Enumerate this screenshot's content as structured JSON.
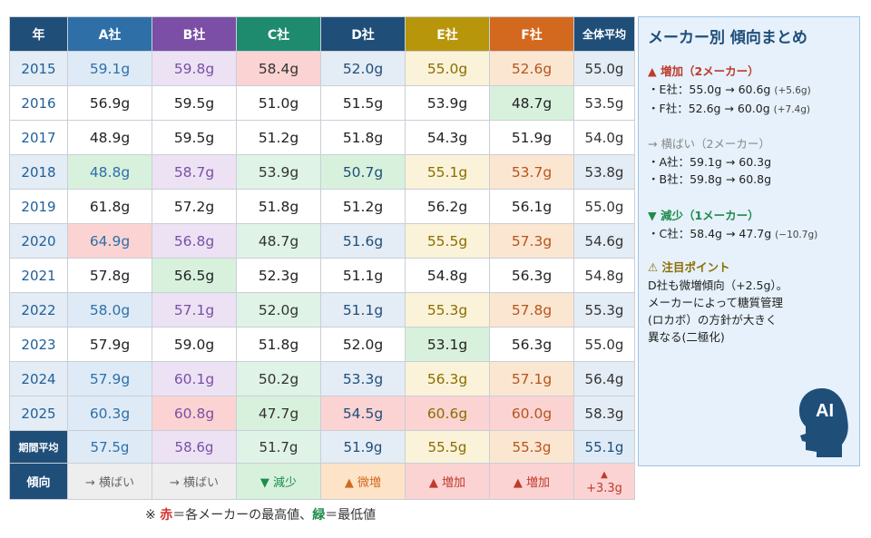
{
  "table": {
    "headers": [
      "年",
      "A社",
      "B社",
      "C社",
      "D社",
      "E社",
      "F社",
      "全体平均"
    ],
    "header_colors": [
      "#1f4e79",
      "#2f6fa8",
      "#7b4fa6",
      "#1e8a6e",
      "#1f4e79",
      "#b8960c",
      "#d2691e",
      "#1f4e79"
    ],
    "col_tints": [
      "#f7f9fb",
      "#deebf7",
      "#ece2f4",
      "#dff3e6",
      "#e4ecf5",
      "#fbf3d9",
      "#fbe6d2",
      "#e4ecf5"
    ],
    "col_text_colors": [
      "#1f5f99",
      "#2f6fa8",
      "#7b4fa6",
      "#333333",
      "#1f4e79",
      "#8a6d00",
      "#b5551a",
      "#333333"
    ],
    "rows": [
      {
        "year": "2015",
        "cells": [
          "59.1g",
          "59.8g",
          "58.4g",
          "52.0g",
          "55.0g",
          "52.6g"
        ],
        "avg": "55.0g",
        "tinted": true,
        "marks": {
          "2": "hi"
        }
      },
      {
        "year": "2016",
        "cells": [
          "56.9g",
          "59.5g",
          "51.0g",
          "51.5g",
          "53.9g",
          "48.7g"
        ],
        "avg": "53.5g",
        "tinted": false,
        "marks": {
          "5": "lo"
        }
      },
      {
        "year": "2017",
        "cells": [
          "48.9g",
          "59.5g",
          "51.2g",
          "51.8g",
          "54.3g",
          "51.9g"
        ],
        "avg": "54.0g",
        "tinted": false,
        "marks": {}
      },
      {
        "year": "2018",
        "cells": [
          "48.8g",
          "58.7g",
          "53.9g",
          "50.7g",
          "55.1g",
          "53.7g"
        ],
        "avg": "53.8g",
        "tinted": true,
        "marks": {
          "0": "lo",
          "3": "lo"
        }
      },
      {
        "year": "2019",
        "cells": [
          "61.8g",
          "57.2g",
          "51.8g",
          "51.2g",
          "56.2g",
          "56.1g"
        ],
        "avg": "55.0g",
        "tinted": false,
        "marks": {}
      },
      {
        "year": "2020",
        "cells": [
          "64.9g",
          "56.8g",
          "48.7g",
          "51.6g",
          "55.5g",
          "57.3g"
        ],
        "avg": "54.6g",
        "tinted": true,
        "marks": {
          "0": "hi"
        }
      },
      {
        "year": "2021",
        "cells": [
          "57.8g",
          "56.5g",
          "52.3g",
          "51.1g",
          "54.8g",
          "56.3g"
        ],
        "avg": "54.8g",
        "tinted": false,
        "marks": {
          "1": "lo"
        }
      },
      {
        "year": "2022",
        "cells": [
          "58.0g",
          "57.1g",
          "52.0g",
          "51.1g",
          "55.3g",
          "57.8g"
        ],
        "avg": "55.3g",
        "tinted": true,
        "marks": {}
      },
      {
        "year": "2023",
        "cells": [
          "57.9g",
          "59.0g",
          "51.8g",
          "52.0g",
          "53.1g",
          "56.3g"
        ],
        "avg": "55.0g",
        "tinted": false,
        "marks": {
          "4": "lo"
        }
      },
      {
        "year": "2024",
        "cells": [
          "57.9g",
          "60.1g",
          "50.2g",
          "53.3g",
          "56.3g",
          "57.1g"
        ],
        "avg": "56.4g",
        "tinted": true,
        "marks": {}
      },
      {
        "year": "2025",
        "cells": [
          "60.3g",
          "60.8g",
          "47.7g",
          "54.5g",
          "60.6g",
          "60.0g"
        ],
        "avg": "58.3g",
        "tinted": true,
        "marks": {
          "1": "hi",
          "2": "lo",
          "3": "hi",
          "4": "hi",
          "5": "hi"
        }
      }
    ],
    "period_avg": {
      "label": "期間平均",
      "cells": [
        "57.5g",
        "58.6g",
        "51.7g",
        "51.9g",
        "55.5g",
        "55.3g"
      ],
      "avg": "55.1g"
    },
    "trend": {
      "label": "傾向",
      "cells": [
        {
          "text": "→ 横ばい",
          "color": "#666666",
          "bg": "#eeeeee"
        },
        {
          "text": "→ 横ばい",
          "color": "#666666",
          "bg": "#eeeeee"
        },
        {
          "text": "▼ 減少",
          "color": "#1e8c4a",
          "bg": "#d8f1dd"
        },
        {
          "text": "▲ 微増",
          "color": "#d2691e",
          "bg": "#fde3c8"
        },
        {
          "text": "▲ 増加",
          "color": "#c0392b",
          "bg": "#fbd3d3"
        },
        {
          "text": "▲ 増加",
          "color": "#c0392b",
          "bg": "#fbd3d3"
        }
      ],
      "avg_arrow": "▲",
      "avg": "+3.3g"
    }
  },
  "panel": {
    "title": "メーカー別 傾向まとめ",
    "increase": {
      "head": "▲ 増加（2メーカー）",
      "lines": [
        [
          "・E社：55.0g → 60.6g",
          "(+5.6g)"
        ],
        [
          "・F社：52.6g → 60.0g",
          "(+7.4g)"
        ]
      ]
    },
    "flat": {
      "head": "→ 横ばい（2メーカー）",
      "lines": [
        [
          "・A社：59.1g → 60.3g",
          ""
        ],
        [
          "・B社：59.8g → 60.8g",
          ""
        ]
      ]
    },
    "decrease": {
      "head": "▼ 減少（1メーカー）",
      "lines": [
        [
          "・C社：58.4g → 47.7g",
          "(−10.7g)"
        ]
      ]
    },
    "notice": {
      "head": "⚠ 注目ポイント",
      "lines": [
        "D社も微増傾向（+2.5g）。",
        "メーカーによって糖質管理",
        "(ロカボ）の方針が大きく",
        "異なる(二極化)"
      ]
    },
    "ai_label": "AI"
  },
  "note": {
    "prefix": "※",
    "red": "赤",
    "mid": "＝各メーカーの最高値、",
    "green": "緑",
    "suffix": "＝最低値"
  }
}
